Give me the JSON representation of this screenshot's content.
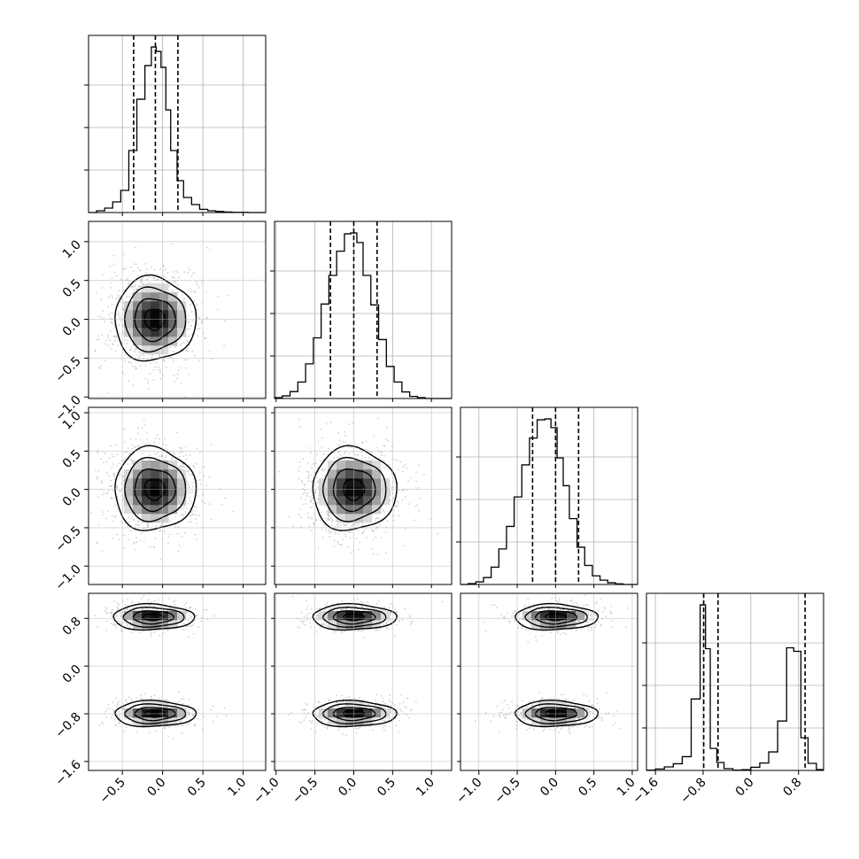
{
  "chart_data": {
    "type": "corner",
    "n_params": 4,
    "grid": true,
    "colors": {
      "line": "#000000",
      "grid": "#b0b0b0",
      "points": "#9a9a9a",
      "density_max": "#000000"
    },
    "axis_ranges": [
      [
        -0.92,
        1.28
      ],
      [
        -1.02,
        1.26
      ],
      [
        -1.24,
        1.07
      ],
      [
        -1.75,
        1.22
      ]
    ],
    "ticks": [
      [
        -0.5,
        0.0,
        0.5,
        1.0
      ],
      [
        -1.0,
        -0.5,
        0.0,
        0.5,
        1.0
      ],
      [
        -1.0,
        -0.5,
        0.0,
        0.5,
        1.0
      ],
      [
        -1.6,
        -0.8,
        0.0,
        0.8
      ]
    ],
    "tick_labels": [
      [
        "−0.5",
        "0.0",
        "0.5",
        "1.0"
      ],
      [
        "−1.0",
        "−0.5",
        "0.0",
        "0.5",
        "1.0"
      ],
      [
        "−1.0",
        "−0.5",
        "0.0",
        "0.5",
        "1.0"
      ],
      [
        "−1.6",
        "−0.8",
        "0.0",
        "0.8"
      ]
    ],
    "histograms": [
      {
        "bin_edges": [
          -0.92,
          -0.82,
          -0.72,
          -0.62,
          -0.52,
          -0.42,
          -0.32,
          -0.22,
          -0.14,
          -0.08,
          -0.02,
          0.04,
          0.1,
          0.18,
          0.26,
          0.36,
          0.46,
          0.56,
          0.66,
          0.76,
          0.86,
          0.96,
          1.06,
          1.16,
          1.28
        ],
        "counts": [
          0,
          10,
          25,
          60,
          125,
          350,
          640,
          830,
          935,
          910,
          820,
          580,
          350,
          180,
          85,
          45,
          18,
          10,
          6,
          3,
          1,
          1,
          0,
          0
        ],
        "quantiles": [
          -0.36,
          -0.09,
          0.19
        ]
      },
      {
        "bin_edges": [
          -1.02,
          -0.92,
          -0.82,
          -0.72,
          -0.62,
          -0.52,
          -0.42,
          -0.32,
          -0.22,
          -0.12,
          -0.04,
          0.04,
          0.12,
          0.22,
          0.32,
          0.42,
          0.52,
          0.62,
          0.72,
          0.82,
          0.92,
          1.02,
          1.12,
          1.26
        ],
        "counts": [
          5,
          15,
          40,
          95,
          200,
          350,
          545,
          710,
          850,
          950,
          955,
          900,
          710,
          540,
          340,
          185,
          95,
          38,
          12,
          5,
          0,
          0,
          0
        ],
        "quantiles": [
          -0.3,
          0.0,
          0.3
        ]
      },
      {
        "bin_edges": [
          -1.24,
          -1.14,
          -1.04,
          -0.94,
          -0.84,
          -0.74,
          -0.64,
          -0.54,
          -0.44,
          -0.34,
          -0.24,
          -0.14,
          -0.06,
          0.02,
          0.1,
          0.18,
          0.28,
          0.38,
          0.48,
          0.58,
          0.68,
          0.78,
          0.88,
          0.98,
          1.07
        ],
        "counts": [
          0,
          5,
          15,
          40,
          100,
          205,
          335,
          505,
          690,
          845,
          950,
          955,
          905,
          730,
          570,
          380,
          215,
          110,
          50,
          25,
          10,
          4,
          0,
          0
        ],
        "quantiles": [
          -0.3,
          0.0,
          0.3
        ]
      },
      {
        "bin_edges": [
          -1.75,
          -1.6,
          -1.45,
          -1.3,
          -1.15,
          -1.0,
          -0.85,
          -0.76,
          -0.68,
          -0.57,
          -0.45,
          -0.3,
          -0.15,
          0.0,
          0.15,
          0.3,
          0.45,
          0.6,
          0.72,
          0.84,
          0.96,
          1.1,
          1.22
        ],
        "counts": [
          2,
          8,
          20,
          38,
          78,
          405,
          938,
          690,
          125,
          45,
          10,
          2,
          4,
          18,
          42,
          105,
          280,
          695,
          675,
          185,
          40,
          5
        ],
        "quantiles": [
          -0.79,
          -0.55,
          0.91
        ]
      }
    ],
    "pairs": [
      {
        "x": 0,
        "y": 1,
        "components": [
          {
            "mx": -0.1,
            "my": 0.0,
            "sx": 0.28,
            "sy": 0.3,
            "w": 1
          }
        ]
      },
      {
        "x": 0,
        "y": 2,
        "components": [
          {
            "mx": -0.1,
            "my": 0.0,
            "sx": 0.28,
            "sy": 0.3,
            "w": 1
          }
        ]
      },
      {
        "x": 1,
        "y": 2,
        "components": [
          {
            "mx": 0.0,
            "my": 0.0,
            "sx": 0.3,
            "sy": 0.3,
            "w": 1
          }
        ]
      },
      {
        "x": 0,
        "y": 3,
        "components": [
          {
            "mx": -0.12,
            "my": 0.82,
            "sx": 0.28,
            "sy": 0.12,
            "w": 0.5
          },
          {
            "mx": -0.1,
            "my": -0.8,
            "sx": 0.28,
            "sy": 0.12,
            "w": 0.5
          }
        ]
      },
      {
        "x": 1,
        "y": 3,
        "components": [
          {
            "mx": 0.0,
            "my": 0.82,
            "sx": 0.3,
            "sy": 0.12,
            "w": 0.5
          },
          {
            "mx": 0.0,
            "my": -0.8,
            "sx": 0.3,
            "sy": 0.12,
            "w": 0.5
          }
        ]
      },
      {
        "x": 2,
        "y": 3,
        "components": [
          {
            "mx": 0.0,
            "my": 0.82,
            "sx": 0.3,
            "sy": 0.12,
            "w": 0.5
          },
          {
            "mx": 0.0,
            "my": -0.8,
            "sx": 0.3,
            "sy": 0.12,
            "w": 0.5
          }
        ]
      }
    ],
    "contour_levels_sigma": [
      0.5,
      1.0,
      1.5,
      2.0
    ]
  }
}
